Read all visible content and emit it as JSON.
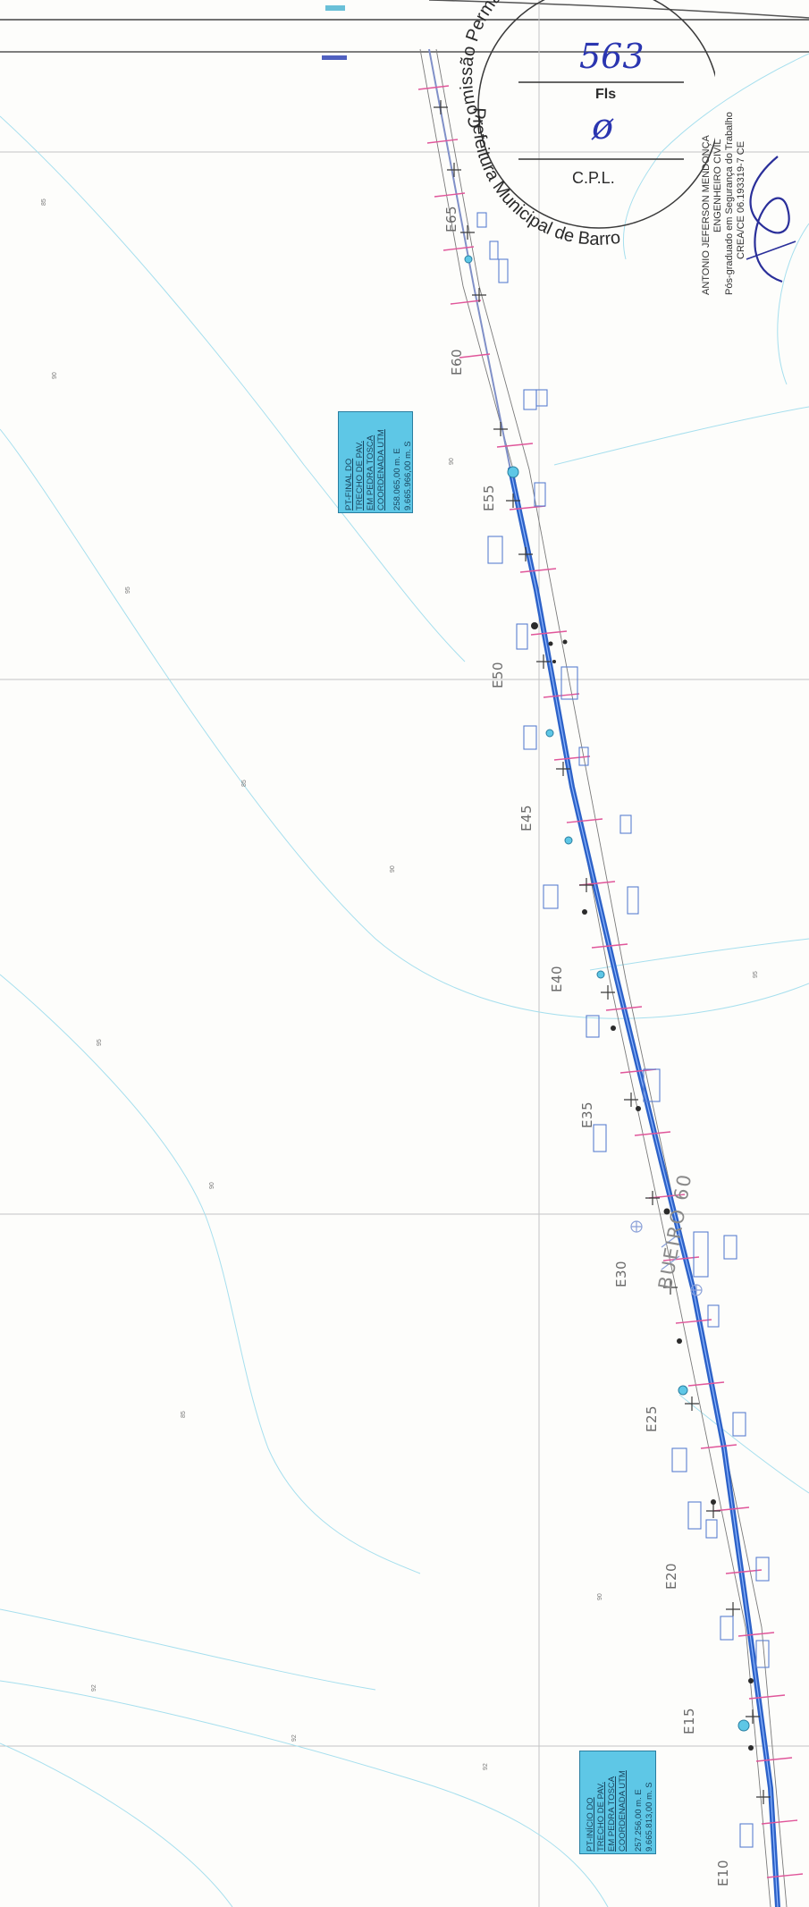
{
  "stamp": {
    "arc_top": "Comissão Permanente de L",
    "arc_bottom": "Prefeitura Municipal de Barro",
    "page_number": "563",
    "fls_label": "Fls",
    "signature": "ø",
    "cpl_label": "C.P.L."
  },
  "engineer": {
    "name": "ANTONIO JEFERSON MENDONÇA",
    "title": "ENGENHEIRO CIVIL",
    "specialization": "Pós-graduado em Segurança do Trabalho",
    "registry": "CREA/CE 06.193319-7 CE"
  },
  "labels": {
    "end_point": {
      "lines": [
        "PT-FINAL DO",
        "TRECHO DE PAV.",
        "EM PEDRA TOSCA",
        "COORDENADA UTM"
      ],
      "coord_e": "258.065,00 m. E",
      "coord_s": "9.665.966,00 m. S"
    },
    "start_point": {
      "lines": [
        "PT-INÍCIO DO",
        "TRECHO DE PAV.",
        "EM PEDRA TOSCA",
        "COORDENADA UTM"
      ],
      "coord_e": "257.256,00 m. E",
      "coord_s": "9.665.813,00 m. S"
    }
  },
  "stations": [
    "E65",
    "E60",
    "E55",
    "E50",
    "E45",
    "E40",
    "E35",
    "E30",
    "E25",
    "E20",
    "E15",
    "E10"
  ],
  "bueiro_label": "BUEIRO 60",
  "contour_labels": [
    "85",
    "90",
    "95",
    "85",
    "90",
    "95",
    "90",
    "85",
    "90",
    "95",
    "90",
    "92",
    "92",
    "92"
  ],
  "colors": {
    "road": "#2d62c8",
    "contour": "#9fdcec",
    "label_fill": "#5ec7e6",
    "stake": "#e0569a",
    "grid": "#bdbdbd"
  }
}
